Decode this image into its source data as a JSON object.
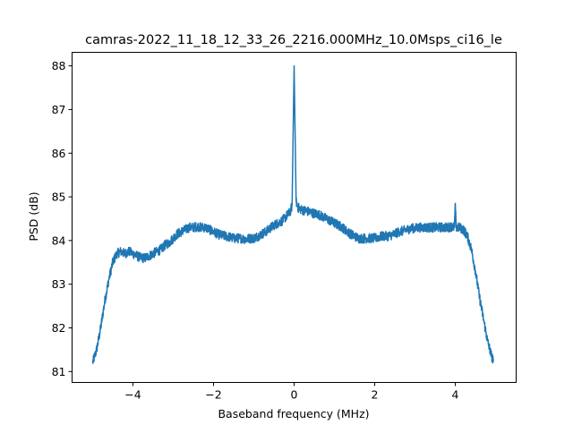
{
  "chart_data": {
    "type": "line",
    "title": "camras-2022_11_18_12_33_26_2216.000MHz_10.0Msps_ci16_le",
    "xlabel": "Baseband frequency (MHz)",
    "ylabel": "PSD (dB)",
    "xlim": [
      -5.51,
      5.51
    ],
    "ylim": [
      80.75,
      88.31
    ],
    "xticks": [
      -4,
      -2,
      0,
      2,
      4
    ],
    "xtick_labels": [
      "−4",
      "−2",
      "0",
      "2",
      "4"
    ],
    "yticks": [
      81,
      82,
      83,
      84,
      85,
      86,
      87,
      88
    ],
    "ytick_labels": [
      "81",
      "82",
      "83",
      "84",
      "85",
      "86",
      "87",
      "88"
    ],
    "grid": false,
    "series": [
      {
        "name": "PSD",
        "color": "#1f77b4",
        "x": [
          -5,
          -4.9,
          -4.8,
          -4.7,
          -4.6,
          -4.5,
          -4.4,
          -4.3,
          -4.2,
          -4.1,
          -4.0,
          -3.9,
          -3.8,
          -3.7,
          -3.6,
          -3.5,
          -3.4,
          -3.3,
          -3.2,
          -3.1,
          -3.0,
          -2.9,
          -2.8,
          -2.7,
          -2.6,
          -2.5,
          -2.4,
          -2.3,
          -2.2,
          -2.1,
          -2.0,
          -1.9,
          -1.8,
          -1.7,
          -1.6,
          -1.5,
          -1.4,
          -1.3,
          -1.2,
          -1.1,
          -1.0,
          -0.9,
          -0.8,
          -0.7,
          -0.6,
          -0.5,
          -0.4,
          -0.3,
          -0.2,
          -0.1,
          -0.05,
          0,
          0.05,
          0.1,
          0.2,
          0.3,
          0.4,
          0.5,
          0.6,
          0.7,
          0.8,
          0.9,
          1.0,
          1.1,
          1.2,
          1.3,
          1.4,
          1.5,
          1.6,
          1.7,
          1.8,
          1.9,
          2.0,
          2.1,
          2.2,
          2.3,
          2.4,
          2.5,
          2.6,
          2.7,
          2.8,
          2.9,
          3.0,
          3.1,
          3.2,
          3.3,
          3.4,
          3.5,
          3.6,
          3.7,
          3.8,
          3.9,
          3.98,
          4.0,
          4.02,
          4.1,
          4.2,
          4.3,
          4.4,
          4.5,
          4.6,
          4.7,
          4.8,
          4.9,
          4.95
        ],
        "y": [
          81.2,
          81.5,
          82.0,
          82.6,
          83.1,
          83.5,
          83.7,
          83.75,
          83.7,
          83.75,
          83.7,
          83.65,
          83.6,
          83.6,
          83.65,
          83.7,
          83.75,
          83.8,
          83.9,
          83.95,
          84.05,
          84.15,
          84.2,
          84.25,
          84.3,
          84.3,
          84.32,
          84.3,
          84.3,
          84.25,
          84.2,
          84.15,
          84.12,
          84.1,
          84.08,
          84.05,
          84.05,
          84.05,
          84.03,
          84.05,
          84.05,
          84.1,
          84.15,
          84.2,
          84.28,
          84.35,
          84.4,
          84.45,
          84.55,
          84.65,
          84.8,
          88.0,
          84.9,
          84.75,
          84.7,
          84.68,
          84.65,
          84.62,
          84.6,
          84.55,
          84.5,
          84.45,
          84.4,
          84.35,
          84.3,
          84.22,
          84.15,
          84.1,
          84.05,
          84.05,
          84.05,
          84.05,
          84.05,
          84.08,
          84.1,
          84.1,
          84.12,
          84.15,
          84.2,
          84.22,
          84.25,
          84.28,
          84.28,
          84.3,
          84.3,
          84.3,
          84.3,
          84.3,
          84.3,
          84.3,
          84.3,
          84.32,
          84.3,
          84.85,
          84.3,
          84.3,
          84.25,
          84.1,
          83.8,
          83.3,
          82.7,
          82.2,
          81.7,
          81.35,
          81.25
        ]
      }
    ]
  }
}
